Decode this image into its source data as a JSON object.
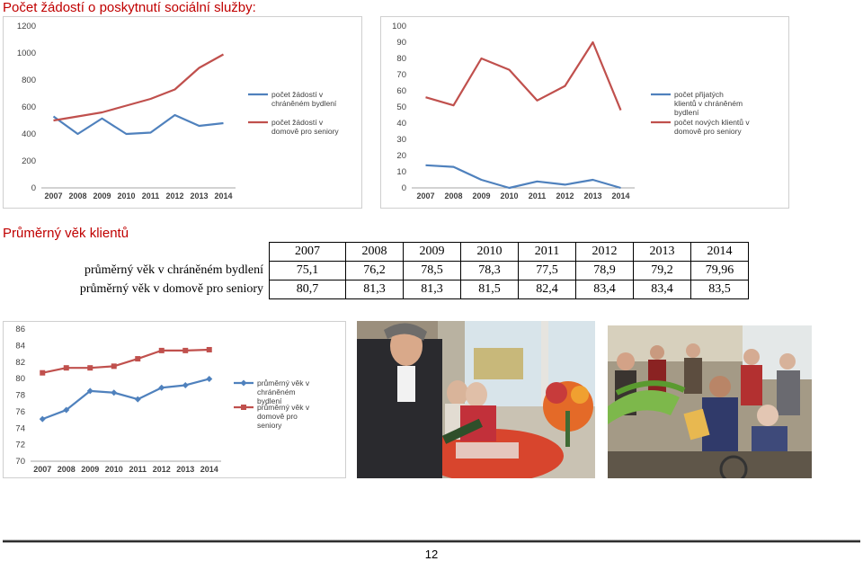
{
  "heading_requests": "Počet žádostí o poskytnutí sociální služby:",
  "heading_age": "Průměrný věk klientů",
  "chart_data": [
    {
      "type": "line",
      "x": [
        "2007",
        "2008",
        "2009",
        "2010",
        "2011",
        "2012",
        "2013",
        "2014"
      ],
      "ylim": [
        0,
        1200
      ],
      "yticks": [
        0,
        200,
        400,
        600,
        800,
        1000,
        1200
      ],
      "legend": "right",
      "grid": false,
      "series": [
        {
          "name": "počet žádostí v chráněném bydlení",
          "color": "#4f81bd",
          "values": [
            530,
            400,
            515,
            400,
            410,
            540,
            460,
            480
          ]
        },
        {
          "name": "počet žádostí v domově pro seniory",
          "color": "#c0504d",
          "values": [
            500,
            530,
            560,
            610,
            660,
            730,
            890,
            990
          ]
        }
      ]
    },
    {
      "type": "line",
      "x": [
        "2007",
        "2008",
        "2009",
        "2010",
        "2011",
        "2012",
        "2013",
        "2014"
      ],
      "ylim": [
        0,
        100
      ],
      "yticks": [
        0,
        10,
        20,
        30,
        40,
        50,
        60,
        70,
        80,
        90,
        100
      ],
      "legend": "right",
      "grid": false,
      "series": [
        {
          "name": "počet přijatých klientů v chráněném bydlení",
          "color": "#4f81bd",
          "values": [
            14,
            13,
            5,
            0,
            4,
            2,
            5,
            0
          ]
        },
        {
          "name": "počet nových klientů v domově pro seniory",
          "color": "#c0504d",
          "values": [
            56,
            51,
            80,
            73,
            54,
            63,
            90,
            48
          ]
        }
      ]
    },
    {
      "type": "line",
      "x": [
        "2007",
        "2008",
        "2009",
        "2010",
        "2011",
        "2012",
        "2013",
        "2014"
      ],
      "ylim": [
        70,
        86
      ],
      "yticks": [
        70,
        72,
        74,
        76,
        78,
        80,
        82,
        84,
        86
      ],
      "legend": "right",
      "grid": false,
      "markers": true,
      "series": [
        {
          "name": "průměrný věk v chráněném bydlení",
          "color": "#4f81bd",
          "marker": "diamond",
          "values": [
            75.1,
            76.2,
            78.5,
            78.3,
            77.5,
            78.9,
            79.2,
            79.96
          ]
        },
        {
          "name": "průměrný věk v domově pro seniory",
          "color": "#c0504d",
          "marker": "square",
          "values": [
            80.7,
            81.3,
            81.3,
            81.5,
            82.4,
            83.4,
            83.4,
            83.5
          ]
        }
      ]
    }
  ],
  "age_table": {
    "years": [
      "2007",
      "2008",
      "2009",
      "2010",
      "2011",
      "2012",
      "2013",
      "2014"
    ],
    "rows": [
      {
        "label": "průměrný věk v chráněném bydlení",
        "values": [
          "75,1",
          "76,2",
          "78,5",
          "78,3",
          "77,5",
          "78,9",
          "79,2",
          "79,96"
        ]
      },
      {
        "label": "průměrný věk v domově pro seniory",
        "values": [
          "80,7",
          "81,3",
          "81,3",
          "81,5",
          "82,4",
          "83,4",
          "83,4",
          "83,5"
        ]
      }
    ]
  },
  "page_number": "12"
}
